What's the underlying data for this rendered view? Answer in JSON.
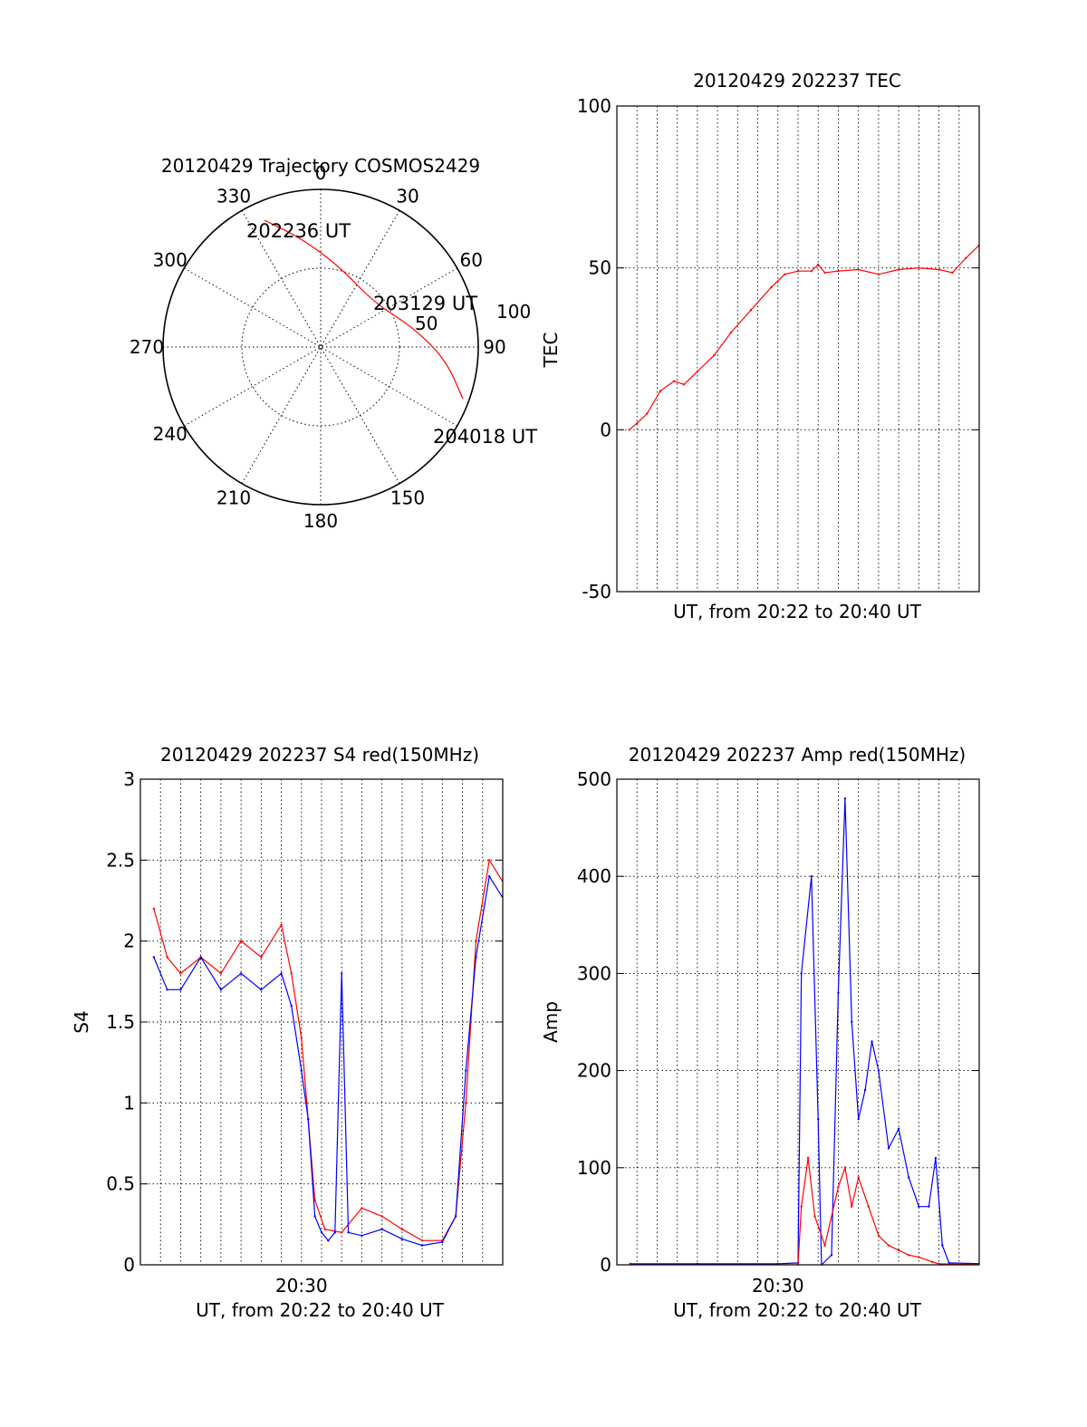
{
  "colors": {
    "red": "#ff0000",
    "blue": "#0000ff",
    "axis": "#000000"
  },
  "chart_data": [
    {
      "type": "polar",
      "title": "20120429 Trajectory COSMOS2429",
      "angle_labels": [
        "0",
        "30",
        "60",
        "90",
        "150",
        "180",
        "210",
        "240",
        "270",
        "300",
        "330"
      ],
      "radius_labels": [
        "50",
        "100"
      ],
      "rlim": [
        0,
        100
      ],
      "grid": true,
      "annotations": [
        "202236 UT",
        "203129 UT",
        "204018 UT"
      ],
      "trajectory": [
        {
          "az": 336,
          "r": 88
        },
        {
          "az": 350,
          "r": 70
        },
        {
          "az": 14,
          "r": 52
        },
        {
          "az": 50,
          "r": 44
        },
        {
          "az": 78,
          "r": 60
        },
        {
          "az": 96,
          "r": 80
        },
        {
          "az": 110,
          "r": 96
        }
      ]
    },
    {
      "type": "line",
      "title": "20120429 202237 TEC",
      "xlabel": "UT, from 20:22 to 20:40 UT",
      "ylabel": "TEC",
      "xlim": [
        "20:22",
        "20:40"
      ],
      "ylim": [
        -50,
        100
      ],
      "yticks": [
        "-50",
        "0",
        "50",
        "100"
      ],
      "grid": true,
      "series": [
        {
          "color": "red",
          "points": [
            [
              "20:22:37",
              0
            ],
            [
              "20:23:00",
              2
            ],
            [
              "20:23:30",
              5
            ],
            [
              "20:24:10",
              12
            ],
            [
              "20:24:50",
              15
            ],
            [
              "20:25:20",
              14
            ],
            [
              "20:26:00",
              18
            ],
            [
              "20:26:50",
              23
            ],
            [
              "20:27:40",
              30
            ],
            [
              "20:28:40",
              37
            ],
            [
              "20:29:40",
              44
            ],
            [
              "20:30:20",
              48
            ],
            [
              "20:31:00",
              49
            ],
            [
              "20:31:40",
              49
            ],
            [
              "20:32:00",
              51
            ],
            [
              "20:32:20",
              48.5
            ],
            [
              "20:33:00",
              49
            ],
            [
              "20:34:00",
              49.5
            ],
            [
              "20:35:00",
              48
            ],
            [
              "20:36:00",
              49.5
            ],
            [
              "20:37:00",
              50
            ],
            [
              "20:38:00",
              49.5
            ],
            [
              "20:38:40",
              48.5
            ],
            [
              "20:39:20",
              53
            ],
            [
              "20:40:00",
              57
            ],
            [
              "20:40:20",
              60
            ]
          ]
        }
      ]
    },
    {
      "type": "line",
      "title": "20120429 202237 S4 red(150MHz)",
      "xlabel": "UT, from 20:22 to 20:40 UT",
      "ylabel": "S4",
      "xlim": [
        "20:22",
        "20:40"
      ],
      "xticks": [
        "20:30"
      ],
      "ylim": [
        0,
        3
      ],
      "yticks": [
        "0",
        "0.5",
        "1",
        "1.5",
        "2",
        "2.5",
        "3"
      ],
      "grid": true,
      "series": [
        {
          "color": "red",
          "points": [
            [
              "20:22:40",
              2.2
            ],
            [
              "20:23:20",
              1.9
            ],
            [
              "20:24:00",
              1.8
            ],
            [
              "20:25:00",
              1.9
            ],
            [
              "20:26:00",
              1.8
            ],
            [
              "20:27:00",
              2.0
            ],
            [
              "20:28:00",
              1.9
            ],
            [
              "20:29:00",
              2.1
            ],
            [
              "20:29:30",
              1.8
            ],
            [
              "20:30:00",
              1.4
            ],
            [
              "20:30:20",
              0.9
            ],
            [
              "20:30:40",
              0.4
            ],
            [
              "20:31:10",
              0.22
            ],
            [
              "20:32:00",
              0.2
            ],
            [
              "20:33:00",
              0.35
            ],
            [
              "20:34:00",
              0.3
            ],
            [
              "20:35:00",
              0.22
            ],
            [
              "20:36:00",
              0.15
            ],
            [
              "20:37:00",
              0.15
            ],
            [
              "20:37:40",
              0.3
            ],
            [
              "20:38:10",
              1.0
            ],
            [
              "20:38:40",
              2.0
            ],
            [
              "20:39:20",
              2.5
            ],
            [
              "20:40:20",
              2.3
            ]
          ]
        },
        {
          "color": "blue",
          "points": [
            [
              "20:22:40",
              1.9
            ],
            [
              "20:23:20",
              1.7
            ],
            [
              "20:24:00",
              1.7
            ],
            [
              "20:25:00",
              1.9
            ],
            [
              "20:26:00",
              1.7
            ],
            [
              "20:27:00",
              1.8
            ],
            [
              "20:28:00",
              1.7
            ],
            [
              "20:29:00",
              1.8
            ],
            [
              "20:29:30",
              1.6
            ],
            [
              "20:30:00",
              1.2
            ],
            [
              "20:30:20",
              0.9
            ],
            [
              "20:30:40",
              0.3
            ],
            [
              "20:31:00",
              0.2
            ],
            [
              "20:31:20",
              0.15
            ],
            [
              "20:31:40",
              0.2
            ],
            [
              "20:32:00",
              1.8
            ],
            [
              "20:32:20",
              0.2
            ],
            [
              "20:33:00",
              0.18
            ],
            [
              "20:34:00",
              0.22
            ],
            [
              "20:35:00",
              0.16
            ],
            [
              "20:36:00",
              0.12
            ],
            [
              "20:37:00",
              0.14
            ],
            [
              "20:37:40",
              0.3
            ],
            [
              "20:38:10",
              1.2
            ],
            [
              "20:38:40",
              1.9
            ],
            [
              "20:39:20",
              2.4
            ],
            [
              "20:40:20",
              2.2
            ]
          ]
        }
      ]
    },
    {
      "type": "line",
      "title": "20120429 202237 Amp red(150MHz)",
      "xlabel": "UT, from 20:22 to 20:40 UT",
      "ylabel": "Amp",
      "xlim": [
        "20:22",
        "20:40"
      ],
      "xticks": [
        "20:30"
      ],
      "ylim": [
        0,
        500
      ],
      "yticks": [
        "0",
        "100",
        "200",
        "300",
        "400",
        "500"
      ],
      "grid": true,
      "series": [
        {
          "color": "blue",
          "points": [
            [
              "20:22:40",
              1
            ],
            [
              "20:26:00",
              1
            ],
            [
              "20:30:00",
              1
            ],
            [
              "20:31:00",
              2
            ],
            [
              "20:31:10",
              300
            ],
            [
              "20:31:40",
              400
            ],
            [
              "20:32:00",
              150
            ],
            [
              "20:32:10",
              0
            ],
            [
              "20:32:40",
              10
            ],
            [
              "20:33:00",
              280
            ],
            [
              "20:33:20",
              480
            ],
            [
              "20:33:40",
              250
            ],
            [
              "20:34:00",
              150
            ],
            [
              "20:34:20",
              180
            ],
            [
              "20:34:40",
              230
            ],
            [
              "20:35:00",
              200
            ],
            [
              "20:35:30",
              120
            ],
            [
              "20:36:00",
              140
            ],
            [
              "20:36:30",
              90
            ],
            [
              "20:37:00",
              60
            ],
            [
              "20:37:30",
              60
            ],
            [
              "20:37:50",
              110
            ],
            [
              "20:38:10",
              20
            ],
            [
              "20:38:30",
              2
            ],
            [
              "20:40:20",
              1
            ]
          ]
        },
        {
          "color": "red",
          "points": [
            [
              "20:22:40",
              0
            ],
            [
              "20:31:00",
              0
            ],
            [
              "20:31:10",
              60
            ],
            [
              "20:31:30",
              110
            ],
            [
              "20:31:50",
              50
            ],
            [
              "20:32:20",
              20
            ],
            [
              "20:33:00",
              80
            ],
            [
              "20:33:20",
              100
            ],
            [
              "20:33:40",
              60
            ],
            [
              "20:34:00",
              90
            ],
            [
              "20:34:30",
              60
            ],
            [
              "20:35:00",
              30
            ],
            [
              "20:35:30",
              20
            ],
            [
              "20:36:00",
              15
            ],
            [
              "20:36:30",
              10
            ],
            [
              "20:37:00",
              8
            ],
            [
              "20:37:40",
              3
            ],
            [
              "20:38:00",
              1
            ],
            [
              "20:40:20",
              0
            ]
          ]
        }
      ]
    }
  ]
}
